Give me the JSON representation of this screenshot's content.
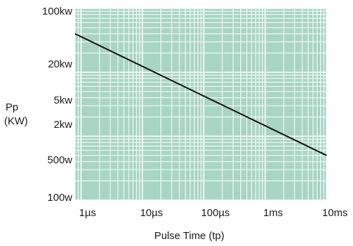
{
  "chart_data": {
    "type": "line",
    "xlabel": "Pulse Time (tp)",
    "ylabel_line1": "Pp",
    "ylabel_line2": "(KW)",
    "x_scale": "log",
    "y_scale": "log",
    "xlim_seconds": [
      8e-07,
      0.01
    ],
    "ylim_watts": [
      100,
      100000
    ],
    "grid": true,
    "plot_background": "#a9d5c4",
    "grid_color": "#ffffff",
    "line_color": "#111111",
    "x_ticks": [
      {
        "label": "1µs",
        "value": 1e-06
      },
      {
        "label": "10µs",
        "value": 1e-05
      },
      {
        "label": "100µs",
        "value": 0.0001
      },
      {
        "label": "1ms",
        "value": 0.001
      },
      {
        "label": "10ms",
        "value": 0.01
      }
    ],
    "y_ticks": [
      {
        "label": "100kw",
        "value": 100000
      },
      {
        "label": "20kw",
        "value": 20000
      },
      {
        "label": "5kw",
        "value": 5000
      },
      {
        "label": "2kw",
        "value": 2000
      },
      {
        "label": "500w",
        "value": 500
      },
      {
        "label": "100w",
        "value": 100
      }
    ],
    "series": [
      {
        "points": [
          {
            "x": 8e-07,
            "y": 40000
          },
          {
            "x": 0.01,
            "y": 500
          }
        ]
      }
    ]
  }
}
